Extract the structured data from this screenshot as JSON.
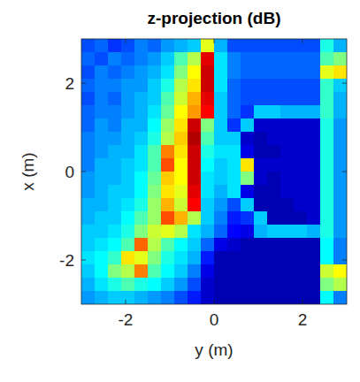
{
  "chart_data": {
    "type": "heatmap",
    "title": "z-projection (dB)",
    "xlabel": "y (m)",
    "ylabel": "x (m)",
    "xlim": [
      -3,
      3
    ],
    "ylim": [
      -3,
      3
    ],
    "xticks": [
      -2,
      0,
      2
    ],
    "yticks": [
      -2,
      0,
      2
    ],
    "color": "jet",
    "clim": [
      -40,
      0
    ],
    "cells": [
      [
        -32,
        -31,
        -33,
        -32,
        -30,
        -31,
        -29,
        -28,
        -27,
        -16,
        -28,
        -32,
        -32,
        -32,
        -32,
        -32,
        -32,
        -32,
        -24,
        -28
      ],
      [
        -31,
        -32,
        -30,
        -31,
        -30,
        -29,
        -27,
        -22,
        -18,
        -4,
        -26,
        -30,
        -31,
        -31,
        -31,
        -31,
        -31,
        -31,
        -22,
        -20
      ],
      [
        -32,
        -30,
        -31,
        -30,
        -29,
        -28,
        -26,
        -20,
        -15,
        -3,
        -26,
        -30,
        -31,
        -31,
        -31,
        -31,
        -31,
        -31,
        -16,
        -14
      ],
      [
        -31,
        -30,
        -30,
        -29,
        -29,
        -27,
        -24,
        -18,
        -14,
        -3,
        -26,
        -31,
        -32,
        -32,
        -32,
        -32,
        -32,
        -32,
        -23,
        -27
      ],
      [
        -32,
        -30,
        -31,
        -29,
        -28,
        -27,
        -22,
        -17,
        -12,
        -4,
        -27,
        -31,
        -32,
        -32,
        -32,
        -32,
        -32,
        -32,
        -23,
        -28
      ],
      [
        -31,
        -30,
        -30,
        -29,
        -28,
        -26,
        -21,
        -15,
        -11,
        -5,
        -27,
        -31,
        -33,
        -27,
        -27,
        -28,
        -28,
        -28,
        -23,
        -28
      ],
      [
        -31,
        -29,
        -30,
        -28,
        -28,
        -25,
        -19,
        -14,
        -3,
        -20,
        -27,
        -33,
        -27,
        -37,
        -37,
        -37,
        -37,
        -37,
        -24,
        -29
      ],
      [
        -30,
        -29,
        -29,
        -28,
        -27,
        -24,
        -18,
        -13,
        -2,
        -22,
        -27,
        -27,
        -37,
        -38,
        -37,
        -37,
        -37,
        -37,
        -24,
        -29
      ],
      [
        -30,
        -29,
        -28,
        -28,
        -26,
        -22,
        -10,
        -14,
        -3,
        -24,
        -26,
        -26,
        -36,
        -38,
        -38,
        -37,
        -37,
        -37,
        -24,
        -29
      ],
      [
        -30,
        -28,
        -28,
        -27,
        -26,
        -22,
        -8,
        -15,
        -3,
        -25,
        -27,
        -26,
        -14,
        -37,
        -37,
        -37,
        -37,
        -37,
        -24,
        -29
      ],
      [
        -29,
        -28,
        -28,
        -27,
        -25,
        -21,
        -13,
        -15,
        -3,
        -26,
        -27,
        -26,
        -20,
        -37,
        -38,
        -37,
        -37,
        -37,
        -24,
        -29
      ],
      [
        -29,
        -28,
        -27,
        -27,
        -25,
        -20,
        -14,
        -16,
        -4,
        -26,
        -28,
        -26,
        -36,
        -38,
        -38,
        -37,
        -37,
        -37,
        -24,
        -29
      ],
      [
        -28,
        -28,
        -27,
        -26,
        -24,
        -19,
        -12,
        -17,
        -5,
        -27,
        -29,
        -32,
        -27,
        -38,
        -38,
        -38,
        -37,
        -37,
        -24,
        -29
      ],
      [
        -28,
        -27,
        -27,
        -25,
        -22,
        -19,
        -8,
        -12,
        -18,
        -27,
        -30,
        -34,
        -33,
        -27,
        -38,
        -38,
        -38,
        -37,
        -24,
        -29
      ],
      [
        -27,
        -27,
        -26,
        -24,
        -20,
        -17,
        -16,
        -18,
        -26,
        -28,
        -31,
        -35,
        -36,
        -28,
        -27,
        -27,
        -27,
        -28,
        -24,
        -29
      ],
      [
        -27,
        -26,
        -25,
        -22,
        -9,
        -18,
        -22,
        -25,
        -27,
        -31,
        -36,
        -37,
        -38,
        -38,
        -38,
        -38,
        -38,
        -38,
        -25,
        -30
      ],
      [
        -26,
        -25,
        -23,
        -14,
        -16,
        -20,
        -24,
        -26,
        -28,
        -34,
        -38,
        -38,
        -38,
        -38,
        -38,
        -38,
        -38,
        -38,
        -25,
        -30
      ],
      [
        -27,
        -25,
        -20,
        -18,
        -10,
        -22,
        -25,
        -27,
        -30,
        -36,
        -38,
        -38,
        -38,
        -38,
        -38,
        -38,
        -38,
        -38,
        -17,
        -15
      ],
      [
        -28,
        -26,
        -24,
        -22,
        -24,
        -25,
        -27,
        -29,
        -32,
        -37,
        -38,
        -38,
        -38,
        -38,
        -38,
        -38,
        -38,
        -38,
        -20,
        -18
      ],
      [
        -29,
        -28,
        -27,
        -27,
        -28,
        -29,
        -30,
        -32,
        -34,
        -37,
        -38,
        -38,
        -38,
        -38,
        -38,
        -38,
        -38,
        -38,
        -25,
        -30
      ]
    ]
  }
}
